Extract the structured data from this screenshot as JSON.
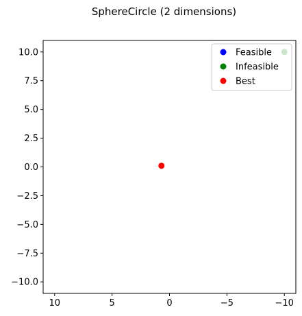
{
  "chart_data": {
    "type": "scatter",
    "title": "SphereCircle (2 dimensions)",
    "xlabel": "",
    "ylabel": "",
    "xlim": [
      11,
      -11
    ],
    "ylim": [
      11,
      -11
    ],
    "x_inverted": true,
    "y_inverted": true,
    "xticks": [
      10,
      5,
      0,
      -5,
      -10
    ],
    "xtick_labels": [
      "10",
      "5",
      "0",
      "−5",
      "−10"
    ],
    "yticks": [
      -10,
      -7.5,
      -5,
      -2.5,
      0,
      2.5,
      5,
      7.5,
      10
    ],
    "ytick_labels": [
      "−10.0",
      "−7.5",
      "−5.0",
      "−2.5",
      "0.0",
      "2.5",
      "5.0",
      "7.5",
      "10.0"
    ],
    "grid": false,
    "legend_position": "top-right",
    "series": [
      {
        "name": "Feasible",
        "color": "#0000ff",
        "points": []
      },
      {
        "name": "Infeasible",
        "color": "#008000",
        "points": [
          [
            -10,
            10
          ]
        ]
      },
      {
        "name": "Best",
        "color": "#ff0000",
        "points": [
          [
            0.7,
            0.1
          ]
        ]
      }
    ]
  }
}
